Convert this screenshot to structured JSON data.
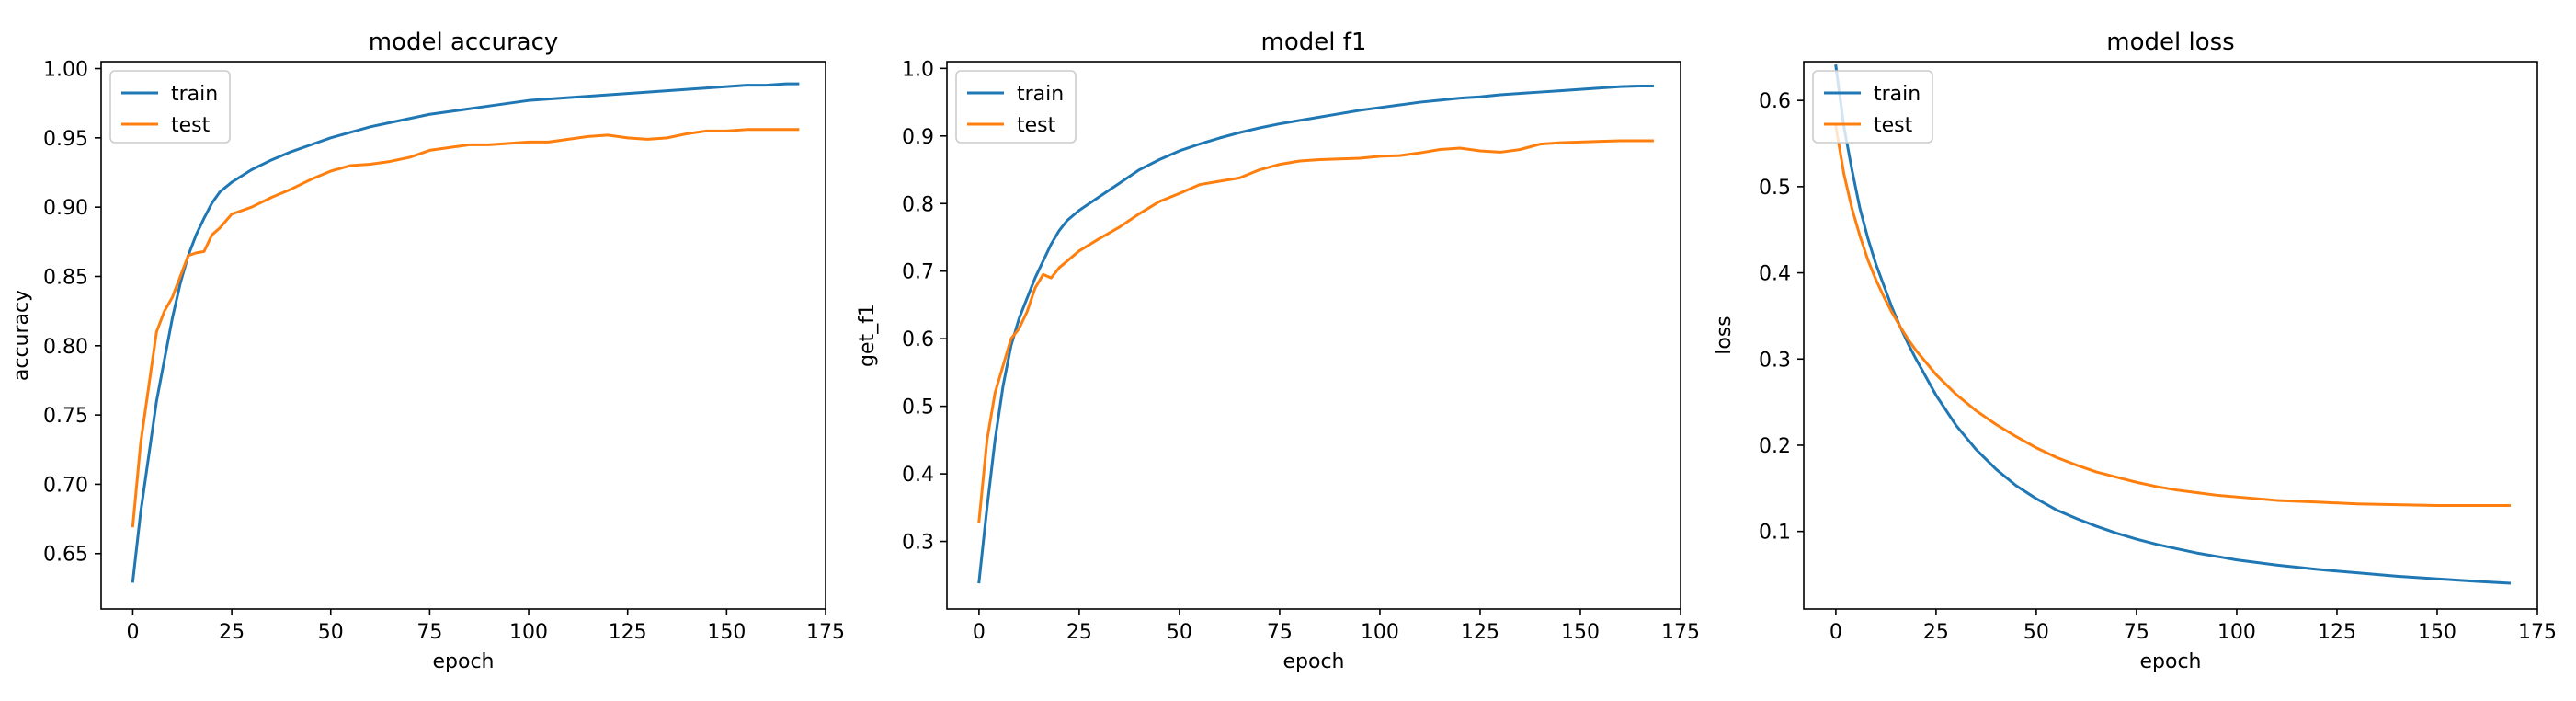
{
  "colors": {
    "train": "#1f77b4",
    "test": "#ff7f0e"
  },
  "chart_data": [
    {
      "type": "line",
      "title": "model accuracy",
      "xlabel": "epoch",
      "ylabel": "accuracy",
      "xlim": [
        -8,
        175
      ],
      "ylim": [
        0.61,
        1.005
      ],
      "xticks": [
        0,
        25,
        50,
        75,
        100,
        125,
        150,
        175
      ],
      "yticks": [
        0.65,
        0.7,
        0.75,
        0.8,
        0.85,
        0.9,
        0.95,
        1.0
      ],
      "ytick_labels": [
        "0.65",
        "0.70",
        "0.75",
        "0.80",
        "0.85",
        "0.90",
        "0.95",
        "1.00"
      ],
      "legend_placement": "upper-left",
      "series": [
        {
          "name": "train",
          "x": [
            0,
            2,
            4,
            6,
            8,
            10,
            12,
            14,
            16,
            18,
            20,
            22,
            25,
            30,
            35,
            40,
            45,
            50,
            55,
            60,
            65,
            70,
            75,
            80,
            85,
            90,
            95,
            100,
            105,
            110,
            115,
            120,
            125,
            130,
            135,
            140,
            145,
            150,
            155,
            160,
            165,
            168
          ],
          "y": [
            0.63,
            0.68,
            0.72,
            0.76,
            0.79,
            0.82,
            0.845,
            0.865,
            0.88,
            0.892,
            0.903,
            0.911,
            0.918,
            0.927,
            0.934,
            0.94,
            0.945,
            0.95,
            0.954,
            0.958,
            0.961,
            0.964,
            0.967,
            0.969,
            0.971,
            0.973,
            0.975,
            0.977,
            0.978,
            0.979,
            0.98,
            0.981,
            0.982,
            0.983,
            0.984,
            0.985,
            0.986,
            0.987,
            0.988,
            0.988,
            0.989,
            0.989
          ]
        },
        {
          "name": "test",
          "x": [
            0,
            2,
            4,
            6,
            8,
            10,
            12,
            14,
            16,
            18,
            20,
            22,
            25,
            30,
            35,
            40,
            45,
            50,
            55,
            60,
            65,
            70,
            75,
            80,
            85,
            90,
            95,
            100,
            105,
            110,
            115,
            120,
            125,
            130,
            135,
            140,
            145,
            150,
            155,
            160,
            165,
            168
          ],
          "y": [
            0.67,
            0.73,
            0.77,
            0.81,
            0.825,
            0.835,
            0.85,
            0.865,
            0.867,
            0.868,
            0.88,
            0.885,
            0.895,
            0.9,
            0.907,
            0.913,
            0.92,
            0.926,
            0.93,
            0.931,
            0.933,
            0.936,
            0.941,
            0.943,
            0.945,
            0.945,
            0.946,
            0.947,
            0.947,
            0.949,
            0.951,
            0.952,
            0.95,
            0.949,
            0.95,
            0.953,
            0.955,
            0.955,
            0.956,
            0.956,
            0.956,
            0.956
          ]
        }
      ]
    },
    {
      "type": "line",
      "title": "model f1",
      "xlabel": "epoch",
      "ylabel": "get_f1",
      "xlim": [
        -8,
        175
      ],
      "ylim": [
        0.2,
        1.01
      ],
      "xticks": [
        0,
        25,
        50,
        75,
        100,
        125,
        150,
        175
      ],
      "yticks": [
        0.3,
        0.4,
        0.5,
        0.6,
        0.7,
        0.8,
        0.9,
        1.0
      ],
      "ytick_labels": [
        "0.3",
        "0.4",
        "0.5",
        "0.6",
        "0.7",
        "0.8",
        "0.9",
        "1.0"
      ],
      "legend_placement": "upper-left",
      "series": [
        {
          "name": "train",
          "x": [
            0,
            2,
            4,
            6,
            8,
            10,
            12,
            14,
            16,
            18,
            20,
            22,
            25,
            30,
            35,
            40,
            45,
            50,
            55,
            60,
            65,
            70,
            75,
            80,
            85,
            90,
            95,
            100,
            105,
            110,
            115,
            120,
            125,
            130,
            135,
            140,
            145,
            150,
            155,
            160,
            165,
            168
          ],
          "y": [
            0.24,
            0.35,
            0.45,
            0.53,
            0.59,
            0.63,
            0.66,
            0.69,
            0.715,
            0.74,
            0.76,
            0.775,
            0.79,
            0.81,
            0.83,
            0.85,
            0.865,
            0.878,
            0.888,
            0.897,
            0.905,
            0.912,
            0.918,
            0.923,
            0.928,
            0.933,
            0.938,
            0.942,
            0.946,
            0.95,
            0.953,
            0.956,
            0.958,
            0.961,
            0.963,
            0.965,
            0.967,
            0.969,
            0.971,
            0.973,
            0.974,
            0.974
          ]
        },
        {
          "name": "test",
          "x": [
            0,
            2,
            4,
            6,
            8,
            10,
            12,
            14,
            16,
            18,
            20,
            22,
            25,
            30,
            35,
            40,
            45,
            50,
            55,
            60,
            65,
            70,
            75,
            80,
            85,
            90,
            95,
            100,
            105,
            110,
            115,
            120,
            125,
            130,
            135,
            140,
            145,
            150,
            155,
            160,
            165,
            168
          ],
          "y": [
            0.33,
            0.45,
            0.52,
            0.56,
            0.6,
            0.615,
            0.64,
            0.675,
            0.695,
            0.69,
            0.705,
            0.715,
            0.73,
            0.748,
            0.765,
            0.785,
            0.803,
            0.815,
            0.828,
            0.833,
            0.838,
            0.85,
            0.858,
            0.863,
            0.865,
            0.866,
            0.867,
            0.87,
            0.871,
            0.875,
            0.88,
            0.882,
            0.878,
            0.876,
            0.88,
            0.888,
            0.89,
            0.891,
            0.892,
            0.893,
            0.893,
            0.893
          ]
        }
      ]
    },
    {
      "type": "line",
      "title": "model loss",
      "xlabel": "epoch",
      "ylabel": "loss",
      "xlim": [
        -8,
        175
      ],
      "ylim": [
        0.01,
        0.645
      ],
      "xticks": [
        0,
        25,
        50,
        75,
        100,
        125,
        150,
        175
      ],
      "yticks": [
        0.1,
        0.2,
        0.3,
        0.4,
        0.5,
        0.6
      ],
      "ytick_labels": [
        "0.1",
        "0.2",
        "0.3",
        "0.4",
        "0.5",
        "0.6"
      ],
      "legend_placement": "upper-left",
      "series": [
        {
          "name": "train",
          "x": [
            0,
            2,
            4,
            6,
            8,
            10,
            12,
            14,
            16,
            18,
            20,
            25,
            30,
            35,
            40,
            45,
            50,
            55,
            60,
            65,
            70,
            75,
            80,
            85,
            90,
            95,
            100,
            110,
            120,
            130,
            140,
            150,
            160,
            168
          ],
          "y": [
            0.64,
            0.57,
            0.52,
            0.475,
            0.44,
            0.41,
            0.385,
            0.36,
            0.338,
            0.318,
            0.3,
            0.258,
            0.223,
            0.195,
            0.172,
            0.153,
            0.138,
            0.125,
            0.115,
            0.106,
            0.098,
            0.091,
            0.085,
            0.08,
            0.075,
            0.071,
            0.067,
            0.061,
            0.056,
            0.052,
            0.048,
            0.045,
            0.042,
            0.04
          ]
        },
        {
          "name": "test",
          "x": [
            0,
            2,
            4,
            6,
            8,
            10,
            12,
            14,
            16,
            18,
            20,
            25,
            30,
            35,
            40,
            45,
            50,
            55,
            60,
            65,
            70,
            75,
            80,
            85,
            90,
            95,
            100,
            110,
            120,
            130,
            140,
            150,
            160,
            168
          ],
          "y": [
            0.57,
            0.515,
            0.475,
            0.443,
            0.415,
            0.392,
            0.372,
            0.354,
            0.338,
            0.323,
            0.31,
            0.282,
            0.259,
            0.24,
            0.224,
            0.21,
            0.197,
            0.186,
            0.177,
            0.169,
            0.163,
            0.157,
            0.152,
            0.148,
            0.145,
            0.142,
            0.14,
            0.136,
            0.134,
            0.132,
            0.131,
            0.13,
            0.13,
            0.13
          ]
        }
      ]
    }
  ]
}
